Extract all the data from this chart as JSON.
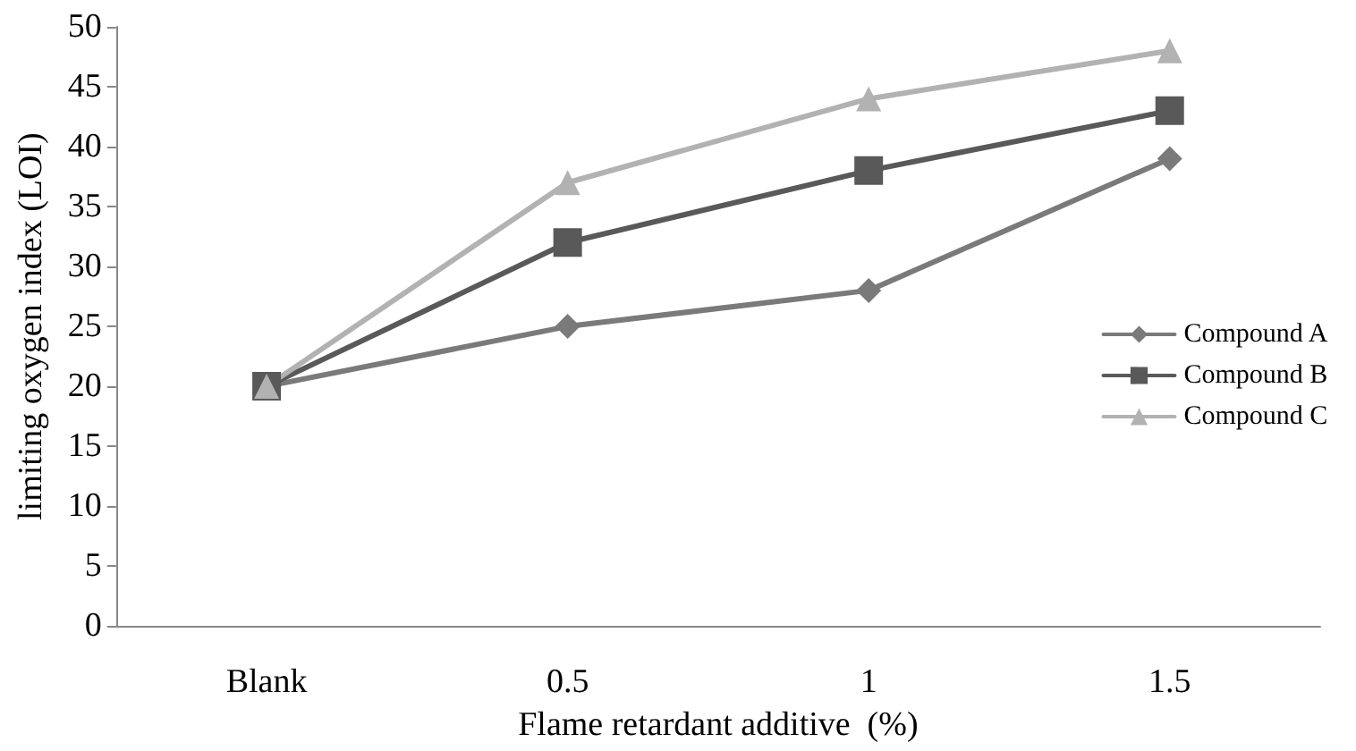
{
  "chart_data": {
    "type": "line",
    "xlabel": "Flame retardant additive  (%)",
    "ylabel": "limiting oxygen index (LOI)",
    "categories": [
      "Blank",
      "0.5",
      "1",
      "1.5"
    ],
    "series": [
      {
        "name": "Compound A",
        "color": "#7a7a7a",
        "marker": "diamond",
        "values": [
          20,
          25,
          28,
          39
        ]
      },
      {
        "name": "Compound B",
        "color": "#595959",
        "marker": "square",
        "values": [
          20,
          32,
          38,
          43
        ]
      },
      {
        "name": "Compound C",
        "color": "#b2b2b2",
        "marker": "triangle",
        "values": [
          20,
          37,
          44,
          48
        ]
      }
    ],
    "ylim": [
      0,
      50
    ],
    "yticks": [
      0,
      5,
      10,
      15,
      20,
      25,
      30,
      35,
      40,
      45,
      50
    ],
    "grid": false,
    "legend": "right",
    "line_style": "solid"
  }
}
